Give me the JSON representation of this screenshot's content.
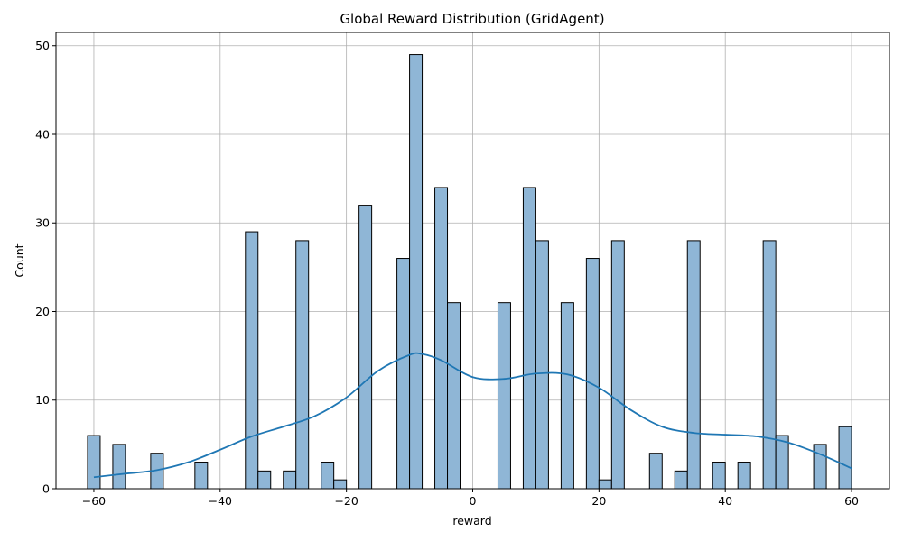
{
  "chart_data": {
    "type": "bar",
    "title": "Global Reward Distribution (GridAgent)",
    "xlabel": "reward",
    "ylabel": "Count",
    "xlim": [
      -66,
      66
    ],
    "ylim": [
      0,
      51.5
    ],
    "xticks": [
      -60,
      -40,
      -20,
      0,
      20,
      40,
      60
    ],
    "yticks": [
      0,
      10,
      20,
      30,
      40,
      50
    ],
    "grid": true,
    "bin_width": 2,
    "bars": [
      {
        "x": -60,
        "count": 6
      },
      {
        "x": -56,
        "count": 5
      },
      {
        "x": -50,
        "count": 4
      },
      {
        "x": -43,
        "count": 3
      },
      {
        "x": -35,
        "count": 29
      },
      {
        "x": -33,
        "count": 2
      },
      {
        "x": -29,
        "count": 2
      },
      {
        "x": -27,
        "count": 28
      },
      {
        "x": -23,
        "count": 3
      },
      {
        "x": -21,
        "count": 1
      },
      {
        "x": -17,
        "count": 32
      },
      {
        "x": -11,
        "count": 26
      },
      {
        "x": -9,
        "count": 49
      },
      {
        "x": -5,
        "count": 34
      },
      {
        "x": -3,
        "count": 21
      },
      {
        "x": 5,
        "count": 21
      },
      {
        "x": 9,
        "count": 34
      },
      {
        "x": 11,
        "count": 28
      },
      {
        "x": 15,
        "count": 21
      },
      {
        "x": 19,
        "count": 26
      },
      {
        "x": 21,
        "count": 1
      },
      {
        "x": 23,
        "count": 28
      },
      {
        "x": 29,
        "count": 4
      },
      {
        "x": 33,
        "count": 2
      },
      {
        "x": 35,
        "count": 28
      },
      {
        "x": 39,
        "count": 3
      },
      {
        "x": 43,
        "count": 3
      },
      {
        "x": 47,
        "count": 28
      },
      {
        "x": 49,
        "count": 6
      },
      {
        "x": 55,
        "count": 5
      },
      {
        "x": 59,
        "count": 7
      }
    ],
    "kde": {
      "x": [
        -60,
        -55,
        -50,
        -45,
        -40,
        -35,
        -30,
        -25,
        -20,
        -15,
        -10,
        -8,
        -5,
        0,
        5,
        10,
        15,
        20,
        25,
        30,
        35,
        40,
        45,
        50,
        55,
        60
      ],
      "y": [
        1.3,
        1.7,
        2.1,
        3.0,
        4.4,
        5.9,
        7.0,
        8.2,
        10.3,
        13.3,
        15.1,
        15.2,
        14.5,
        12.6,
        12.4,
        13.0,
        12.9,
        11.4,
        8.9,
        7.0,
        6.3,
        6.1,
        5.9,
        5.2,
        3.9,
        2.3
      ]
    },
    "colors": {
      "bar_fill": "#8fb6d6",
      "bar_edge": "#000000",
      "kde_line": "#1f77b4",
      "grid": "#b0b0b0"
    }
  }
}
